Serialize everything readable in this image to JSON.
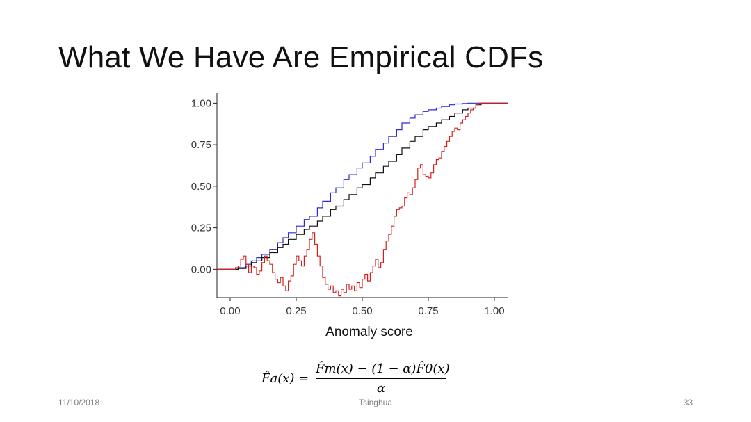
{
  "slide": {
    "title": "What We Have Are Empirical CDFs",
    "footer_date": "11/10/2018",
    "footer_center": "Tsinghua",
    "page_number": "33"
  },
  "formula": {
    "lhs": "F̂a(x) =",
    "numerator": "F̂m(x) − (1 − α)F̂0(x)",
    "denominator": "α"
  },
  "colors": {
    "blue": "#2b2bd6",
    "black": "#111111",
    "red": "#d62020",
    "axis": "#222222"
  },
  "chart_data": {
    "type": "line",
    "title": "",
    "xlabel": "Anomaly score",
    "ylabel": "",
    "xlim": [
      -0.05,
      1.05
    ],
    "ylim": [
      -0.17,
      1.06
    ],
    "xticks": [
      0.0,
      0.25,
      0.5,
      0.75,
      1.0
    ],
    "xtick_labels": [
      "0.00",
      "0.25",
      "0.50",
      "0.75",
      "1.00"
    ],
    "yticks": [
      0.0,
      0.25,
      0.5,
      0.75,
      1.0
    ],
    "ytick_labels": [
      "0.00",
      "0.25",
      "0.50",
      "0.75",
      "1.00"
    ],
    "series": [
      {
        "name": "blue",
        "color": "#2b2bd6",
        "x": [
          -0.05,
          0.0,
          0.03,
          0.06,
          0.08,
          0.1,
          0.12,
          0.15,
          0.18,
          0.2,
          0.22,
          0.25,
          0.28,
          0.3,
          0.33,
          0.35,
          0.38,
          0.4,
          0.43,
          0.45,
          0.48,
          0.5,
          0.53,
          0.55,
          0.58,
          0.6,
          0.63,
          0.65,
          0.68,
          0.7,
          0.73,
          0.75,
          0.78,
          0.8,
          0.83,
          0.85,
          0.88,
          0.9,
          0.93,
          0.95,
          1.0,
          1.05
        ],
        "y": [
          0.0,
          0.0,
          0.01,
          0.03,
          0.05,
          0.07,
          0.09,
          0.12,
          0.16,
          0.19,
          0.22,
          0.26,
          0.3,
          0.32,
          0.37,
          0.41,
          0.46,
          0.49,
          0.54,
          0.57,
          0.61,
          0.64,
          0.68,
          0.72,
          0.76,
          0.8,
          0.84,
          0.88,
          0.91,
          0.93,
          0.95,
          0.96,
          0.97,
          0.98,
          0.99,
          0.995,
          0.998,
          1.0,
          1.0,
          1.0,
          1.0,
          1.0
        ]
      },
      {
        "name": "black",
        "color": "#111111",
        "x": [
          -0.05,
          0.0,
          0.03,
          0.06,
          0.08,
          0.1,
          0.12,
          0.15,
          0.18,
          0.2,
          0.22,
          0.25,
          0.28,
          0.3,
          0.33,
          0.35,
          0.38,
          0.4,
          0.43,
          0.45,
          0.48,
          0.5,
          0.53,
          0.55,
          0.58,
          0.6,
          0.63,
          0.65,
          0.68,
          0.7,
          0.73,
          0.75,
          0.78,
          0.8,
          0.83,
          0.85,
          0.88,
          0.9,
          0.93,
          0.95,
          0.97,
          1.0,
          1.05
        ],
        "y": [
          0.0,
          0.0,
          0.005,
          0.02,
          0.04,
          0.05,
          0.07,
          0.1,
          0.13,
          0.15,
          0.18,
          0.21,
          0.24,
          0.26,
          0.29,
          0.32,
          0.36,
          0.38,
          0.42,
          0.45,
          0.49,
          0.51,
          0.55,
          0.58,
          0.62,
          0.65,
          0.69,
          0.73,
          0.77,
          0.8,
          0.84,
          0.86,
          0.88,
          0.9,
          0.92,
          0.94,
          0.96,
          0.97,
          0.99,
          1.0,
          1.0,
          1.0,
          1.0
        ]
      },
      {
        "name": "red",
        "color": "#d62020",
        "x": [
          -0.05,
          0.0,
          0.02,
          0.03,
          0.04,
          0.05,
          0.06,
          0.07,
          0.08,
          0.09,
          0.1,
          0.11,
          0.12,
          0.13,
          0.14,
          0.15,
          0.16,
          0.17,
          0.18,
          0.19,
          0.2,
          0.21,
          0.22,
          0.23,
          0.24,
          0.25,
          0.26,
          0.27,
          0.28,
          0.29,
          0.3,
          0.31,
          0.32,
          0.33,
          0.34,
          0.35,
          0.36,
          0.37,
          0.38,
          0.39,
          0.4,
          0.41,
          0.42,
          0.43,
          0.44,
          0.45,
          0.46,
          0.47,
          0.48,
          0.49,
          0.5,
          0.51,
          0.52,
          0.53,
          0.54,
          0.55,
          0.56,
          0.57,
          0.58,
          0.59,
          0.6,
          0.61,
          0.62,
          0.63,
          0.64,
          0.65,
          0.66,
          0.67,
          0.68,
          0.69,
          0.7,
          0.71,
          0.72,
          0.73,
          0.74,
          0.75,
          0.76,
          0.77,
          0.78,
          0.79,
          0.8,
          0.81,
          0.82,
          0.83,
          0.84,
          0.85,
          0.86,
          0.87,
          0.88,
          0.89,
          0.9,
          0.91,
          0.92,
          0.93,
          0.94,
          0.95,
          0.96,
          1.0,
          1.05
        ],
        "y": [
          0.0,
          0.0,
          0.01,
          0.02,
          0.06,
          0.08,
          0.03,
          -0.02,
          0.02,
          0.01,
          -0.03,
          -0.01,
          0.04,
          0.08,
          0.05,
          0.03,
          -0.02,
          -0.06,
          -0.08,
          -0.05,
          -0.1,
          -0.13,
          -0.07,
          -0.04,
          0.03,
          0.08,
          0.05,
          0.02,
          0.08,
          0.12,
          0.18,
          0.22,
          0.15,
          0.08,
          0.02,
          -0.05,
          -0.09,
          -0.12,
          -0.1,
          -0.14,
          -0.13,
          -0.16,
          -0.12,
          -0.14,
          -0.09,
          -0.12,
          -0.1,
          -0.13,
          -0.08,
          -0.11,
          -0.06,
          -0.03,
          -0.07,
          -0.02,
          0.02,
          0.06,
          0.01,
          0.04,
          0.12,
          0.17,
          0.21,
          0.26,
          0.32,
          0.36,
          0.37,
          0.38,
          0.43,
          0.46,
          0.45,
          0.49,
          0.54,
          0.61,
          0.63,
          0.57,
          0.56,
          0.55,
          0.58,
          0.63,
          0.66,
          0.67,
          0.71,
          0.74,
          0.77,
          0.8,
          0.83,
          0.85,
          0.84,
          0.88,
          0.9,
          0.92,
          0.94,
          0.96,
          0.97,
          0.99,
          1.0,
          1.0,
          1.0,
          1.0,
          1.0
        ]
      }
    ]
  }
}
